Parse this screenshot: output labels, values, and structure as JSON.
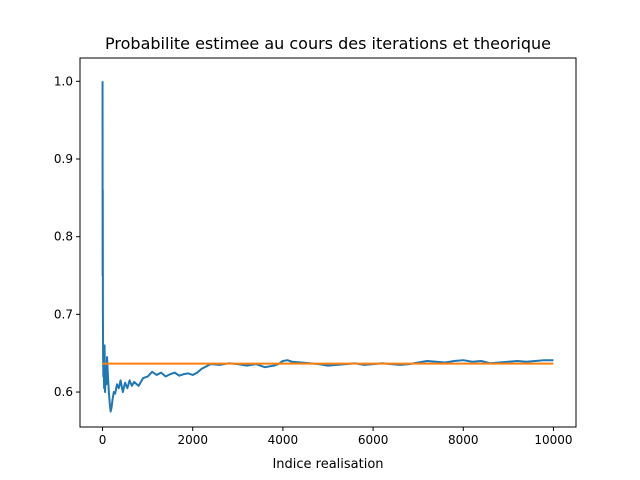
{
  "chart_data": {
    "type": "line",
    "title": "Probabilite estimee au cours des iterations et theorique",
    "xlabel": "Indice realisation",
    "ylabel": "",
    "xlim": [
      -500,
      10500
    ],
    "ylim": [
      0.555,
      1.03
    ],
    "x_ticks": [
      0,
      2000,
      4000,
      6000,
      8000,
      10000
    ],
    "x_tick_labels": [
      "0",
      "2000",
      "4000",
      "6000",
      "8000",
      "10000"
    ],
    "y_ticks": [
      0.6,
      0.7,
      0.8,
      0.9,
      1.0
    ],
    "y_tick_labels": [
      "0.6",
      "0.7",
      "0.8",
      "0.9",
      "1.0"
    ],
    "grid": false,
    "legend": "none",
    "series": [
      {
        "color": "#1f77b4",
        "x": [
          0,
          2,
          5,
          8,
          12,
          18,
          25,
          35,
          45,
          55,
          70,
          85,
          100,
          120,
          140,
          160,
          180,
          200,
          220,
          250,
          280,
          320,
          360,
          400,
          450,
          500,
          550,
          600,
          650,
          700,
          800,
          900,
          1000,
          1100,
          1200,
          1300,
          1400,
          1500,
          1600,
          1700,
          1800,
          1900,
          2000,
          2100,
          2200,
          2300,
          2400,
          2600,
          2800,
          3000,
          3200,
          3400,
          3600,
          3800,
          3900,
          4000,
          4100,
          4200,
          4400,
          4600,
          4800,
          5000,
          5200,
          5400,
          5600,
          5800,
          6000,
          6200,
          6400,
          6600,
          6800,
          7000,
          7200,
          7400,
          7600,
          7800,
          8000,
          8200,
          8400,
          8600,
          8800,
          9000,
          9200,
          9400,
          9600,
          9800,
          10000
        ],
        "y": [
          1.0,
          0.75,
          0.86,
          0.7,
          0.65,
          0.62,
          0.64,
          0.605,
          0.66,
          0.6,
          0.63,
          0.61,
          0.645,
          0.62,
          0.6,
          0.585,
          0.575,
          0.58,
          0.59,
          0.6,
          0.598,
          0.61,
          0.605,
          0.615,
          0.6,
          0.612,
          0.605,
          0.615,
          0.608,
          0.613,
          0.608,
          0.618,
          0.62,
          0.626,
          0.622,
          0.625,
          0.62,
          0.623,
          0.625,
          0.621,
          0.623,
          0.624,
          0.622,
          0.625,
          0.63,
          0.633,
          0.636,
          0.635,
          0.637,
          0.636,
          0.634,
          0.636,
          0.632,
          0.634,
          0.636,
          0.64,
          0.641,
          0.639,
          0.638,
          0.637,
          0.636,
          0.634,
          0.635,
          0.636,
          0.637,
          0.635,
          0.636,
          0.637,
          0.636,
          0.635,
          0.636,
          0.638,
          0.64,
          0.639,
          0.638,
          0.64,
          0.641,
          0.639,
          0.64,
          0.637,
          0.638,
          0.639,
          0.64,
          0.639,
          0.64,
          0.641,
          0.641
        ]
      },
      {
        "color": "#ff7f0e",
        "x": [
          0,
          10000
        ],
        "y": [
          0.6366,
          0.6366
        ]
      }
    ]
  }
}
